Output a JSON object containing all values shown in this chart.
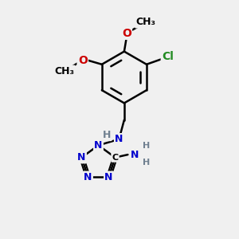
{
  "background_color": "#f0f0f0",
  "bond_color": "#000000",
  "bond_width": 1.8,
  "atom_colors": {
    "C": "#000000",
    "H": "#708090",
    "N": "#0000cd",
    "O": "#cc0000",
    "Cl": "#228b22"
  },
  "font_size_atom": 11,
  "font_size_small": 9
}
